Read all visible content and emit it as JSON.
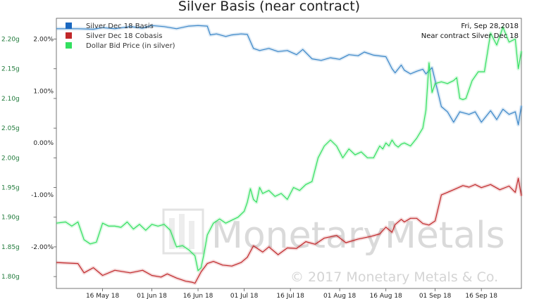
{
  "chart_data": {
    "type": "line",
    "title": "Silver Basis (near contract)",
    "annotation_date": "Fri, Sep 28,2018",
    "annotation_contract": "Near contract Silver Dec 18",
    "watermark_brand": "MonetaryMetals",
    "watermark_copyright": "© 2017 Monetary Metals & Co.",
    "legend_position": "top-left",
    "grid": false,
    "x_ticks": [
      "16 May 18",
      "01 Jun 18",
      "16 Jun 18",
      "01 Jul 18",
      "16 Jul 18",
      "01 Aug 18",
      "16 Aug 18",
      "01 Sep 18",
      "16 Sep 18"
    ],
    "x_tick_days": [
      16,
      32,
      47,
      62,
      77,
      93,
      108,
      124,
      139
    ],
    "x_range_days": [
      1,
      152
    ],
    "left_axis": {
      "ticks": [
        "1.80g",
        "1.85g",
        "1.90g",
        "1.95g",
        "2.00g",
        "2.05g",
        "2.10g",
        "2.15g",
        "2.20g"
      ],
      "tick_values": [
        1.8,
        1.85,
        1.9,
        1.95,
        2.0,
        2.05,
        2.1,
        2.15,
        2.2
      ],
      "range": [
        1.78,
        2.235
      ],
      "color": "#1f7a3a"
    },
    "right_axis": {
      "ticks": [
        "-2.00%",
        "-1.00%",
        "0.00%",
        "1.00%",
        "2.00%"
      ],
      "tick_values": [
        -2.0,
        -1.0,
        0.0,
        1.0,
        2.0
      ],
      "range": [
        -2.8,
        2.4
      ]
    },
    "series": [
      {
        "name": "Silver Dec 18 Basis",
        "color": "#3a86c8",
        "axis": "right",
        "x": [
          1,
          8,
          13,
          16,
          20,
          25,
          29,
          32,
          36,
          40,
          44,
          47,
          50,
          51,
          53,
          56,
          58,
          61,
          63,
          65,
          67,
          70,
          73,
          76,
          79,
          81,
          84,
          87,
          90,
          93,
          96,
          99,
          101,
          104,
          108,
          110,
          111,
          113,
          114,
          116,
          118,
          120,
          121,
          123,
          126,
          128,
          130,
          132,
          135,
          137,
          139,
          142,
          144,
          146,
          148,
          150,
          151,
          152
        ],
        "values": [
          2.2,
          2.2,
          2.19,
          2.22,
          2.2,
          2.24,
          2.21,
          2.26,
          2.24,
          2.2,
          2.25,
          2.26,
          2.25,
          2.08,
          2.1,
          2.05,
          2.08,
          2.1,
          2.09,
          1.82,
          1.78,
          1.82,
          1.76,
          1.78,
          1.7,
          1.8,
          1.62,
          1.59,
          1.64,
          1.61,
          1.7,
          1.68,
          1.75,
          1.69,
          1.66,
          1.43,
          1.35,
          1.5,
          1.4,
          1.33,
          1.38,
          1.42,
          1.33,
          1.45,
          0.7,
          0.6,
          0.4,
          0.6,
          0.55,
          0.6,
          0.4,
          0.62,
          0.45,
          0.65,
          0.55,
          0.6,
          0.35,
          0.72
        ]
      },
      {
        "name": "Silver Dec 18 Cobasis",
        "color": "#c0282a",
        "axis": "right",
        "x": [
          1,
          8,
          10,
          13,
          16,
          20,
          25,
          29,
          32,
          35,
          37,
          40,
          43,
          45,
          46,
          48,
          50,
          52,
          55,
          58,
          61,
          63,
          65,
          68,
          70,
          73,
          76,
          79,
          82,
          85,
          88,
          92,
          95,
          99,
          103,
          106,
          108,
          110,
          111,
          113,
          114,
          116,
          118,
          120,
          122,
          124,
          126,
          128,
          130,
          133,
          135,
          137,
          139,
          142,
          145,
          148,
          150,
          151,
          152
        ],
        "values": [
          -2.3,
          -2.32,
          -2.5,
          -2.4,
          -2.55,
          -2.45,
          -2.5,
          -2.45,
          -2.55,
          -2.58,
          -2.52,
          -2.6,
          -2.66,
          -2.68,
          -2.7,
          -2.48,
          -2.32,
          -2.28,
          -2.35,
          -2.37,
          -2.3,
          -2.2,
          -1.98,
          -2.1,
          -2.0,
          -2.15,
          -2.02,
          -2.03,
          -1.9,
          -1.95,
          -1.83,
          -1.78,
          -1.92,
          -1.85,
          -1.8,
          -1.75,
          -1.62,
          -1.72,
          -1.57,
          -1.47,
          -1.52,
          -1.45,
          -1.45,
          -1.55,
          -1.58,
          -1.5,
          -1.0,
          -0.95,
          -0.9,
          -0.82,
          -0.85,
          -0.8,
          -0.86,
          -0.8,
          -0.9,
          -0.83,
          -0.95,
          -0.68,
          -1.02
        ]
      },
      {
        "name": "Dollar Bid Price (in silver)",
        "color": "#33e060",
        "axis": "left",
        "x": [
          1,
          4,
          6,
          8,
          10,
          12,
          14,
          16,
          18,
          20,
          22,
          24,
          26,
          28,
          30,
          32,
          34,
          36,
          38,
          40,
          42,
          44,
          46,
          47,
          48,
          49,
          50,
          52,
          54,
          56,
          58,
          60,
          62,
          63,
          64,
          65,
          66,
          67,
          68,
          70,
          72,
          74,
          76,
          78,
          80,
          82,
          84,
          86,
          88,
          90,
          92,
          94,
          96,
          98,
          100,
          102,
          104,
          106,
          107,
          108,
          109,
          110,
          111,
          112,
          113,
          114,
          116,
          118,
          120,
          121,
          122,
          123,
          124,
          126,
          128,
          130,
          131,
          132,
          133,
          134,
          136,
          138,
          140,
          142,
          144,
          146,
          148,
          150,
          151,
          152
        ],
        "values": [
          1.89,
          1.892,
          1.885,
          1.892,
          1.862,
          1.855,
          1.858,
          1.89,
          1.885,
          1.885,
          1.883,
          1.892,
          1.88,
          1.888,
          1.878,
          1.888,
          1.885,
          1.888,
          1.878,
          1.85,
          1.852,
          1.845,
          1.835,
          1.81,
          1.815,
          1.84,
          1.87,
          1.89,
          1.897,
          1.89,
          1.895,
          1.9,
          1.91,
          1.925,
          1.948,
          1.93,
          1.925,
          1.95,
          1.94,
          1.945,
          1.935,
          1.94,
          1.93,
          1.95,
          1.945,
          1.955,
          1.96,
          2.0,
          2.02,
          2.03,
          2.02,
          2.0,
          2.015,
          2.005,
          2.01,
          2.0,
          2.0,
          2.02,
          2.015,
          2.025,
          2.02,
          2.03,
          2.022,
          2.018,
          2.023,
          2.025,
          2.02,
          2.033,
          2.05,
          2.08,
          2.16,
          2.11,
          2.125,
          2.128,
          2.125,
          2.13,
          2.135,
          2.1,
          2.098,
          2.1,
          2.13,
          2.145,
          2.145,
          2.21,
          2.19,
          2.22,
          2.195,
          2.2,
          2.15,
          2.18
        ]
      }
    ]
  }
}
